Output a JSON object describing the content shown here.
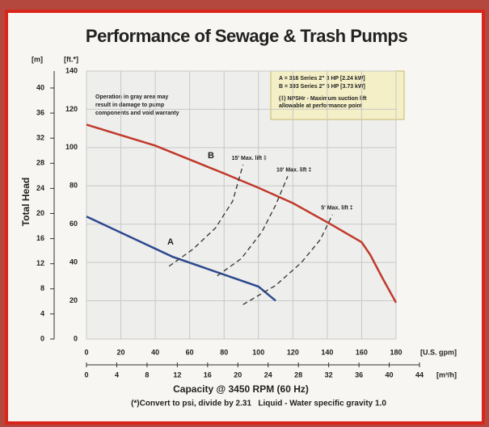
{
  "chart_data": {
    "type": "line",
    "title": "Performance of Sewage & Trash Pumps",
    "y_label": "Total Head",
    "x_label": "Capacity @ 3450 RPM (60 Hz)",
    "footnote": "(*)Convert to psi, divide by 2.31   Liquid - Water specific gravity 1.0",
    "note": [
      "Operation in gray area may",
      "result in damage to pump",
      "components and void warranty"
    ],
    "legend_box": [
      "A = 316 Series 2\" 3 HP [2.24 kW]",
      "B = 393 Series 2\" 5 HP [3.73 kW]",
      "(‡) NPSHr - Maximum suction lift",
      "allowable at performance point"
    ],
    "x_unit": "[U.S. gpm]",
    "x2_unit": "[m³/h]",
    "y_unit": "[ft.*]",
    "y2_unit": "[m]",
    "xlim": [
      0,
      180
    ],
    "xticks": [
      0,
      20,
      40,
      60,
      80,
      100,
      120,
      140,
      160,
      180
    ],
    "x2lim": [
      0,
      44
    ],
    "x2ticks": [
      0,
      4,
      8,
      12,
      16,
      20,
      24,
      28,
      32,
      36,
      40,
      44
    ],
    "ylim": [
      0,
      140
    ],
    "yticks": [
      0,
      20,
      40,
      60,
      80,
      100,
      120,
      140
    ],
    "y2lim": [
      0,
      42.7
    ],
    "y2ticks": [
      0,
      4,
      8,
      12,
      16,
      20,
      24,
      28,
      32,
      36,
      40
    ],
    "grid": true,
    "series": [
      {
        "name": "B",
        "color": "#c0392b",
        "x": [
          0,
          40,
          80,
          100,
          120,
          140,
          160,
          165,
          172,
          180
        ],
        "values": [
          112,
          101,
          86.5,
          79,
          71,
          61,
          50.6,
          44,
          32,
          19
        ]
      },
      {
        "name": "A",
        "color": "#2e4a8f",
        "x": [
          0,
          50,
          100,
          110
        ],
        "values": [
          64,
          43,
          27.4,
          20
        ]
      }
    ],
    "lift_lines": [
      {
        "label": "15' Max. lift ‡",
        "x": [
          48,
          62,
          75,
          85,
          91
        ],
        "values": [
          38,
          47,
          58,
          72,
          91
        ]
      },
      {
        "label": "10' Max. lift ‡",
        "x": [
          76,
          90,
          102,
          110,
          117
        ],
        "values": [
          33,
          42,
          56,
          70,
          85
        ]
      },
      {
        "label": "5' Max. lift ‡",
        "x": [
          91,
          110,
          125,
          136,
          143
        ],
        "values": [
          18,
          28,
          40,
          52,
          65
        ]
      }
    ]
  }
}
